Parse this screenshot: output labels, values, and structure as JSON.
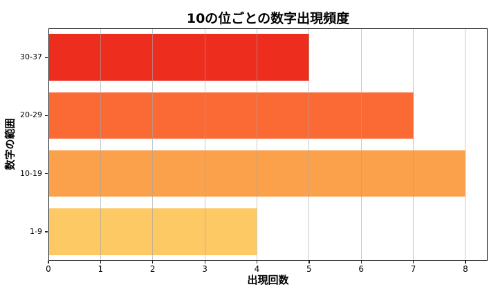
{
  "figure": {
    "background": "#ffffff",
    "grid_color": "#a5a5a5",
    "spine_color": "#262626"
  },
  "chart_data": {
    "type": "bar",
    "orientation": "horizontal",
    "title": "10の位ごとの数字出現頻度",
    "xlabel": "出現回数",
    "ylabel": "数字の範囲",
    "categories": [
      "30-37",
      "20-29",
      "10-19",
      "1-9"
    ],
    "values": [
      5,
      7,
      8,
      4
    ],
    "bar_colors": [
      "#ed2d1e",
      "#fb6a35",
      "#fba14c",
      "#fdc964"
    ],
    "xticks": [
      "0",
      "1",
      "2",
      "3",
      "4",
      "5",
      "6",
      "7",
      "8"
    ],
    "xlim": [
      0,
      8.425
    ],
    "grid": true,
    "legend_position": "none"
  }
}
